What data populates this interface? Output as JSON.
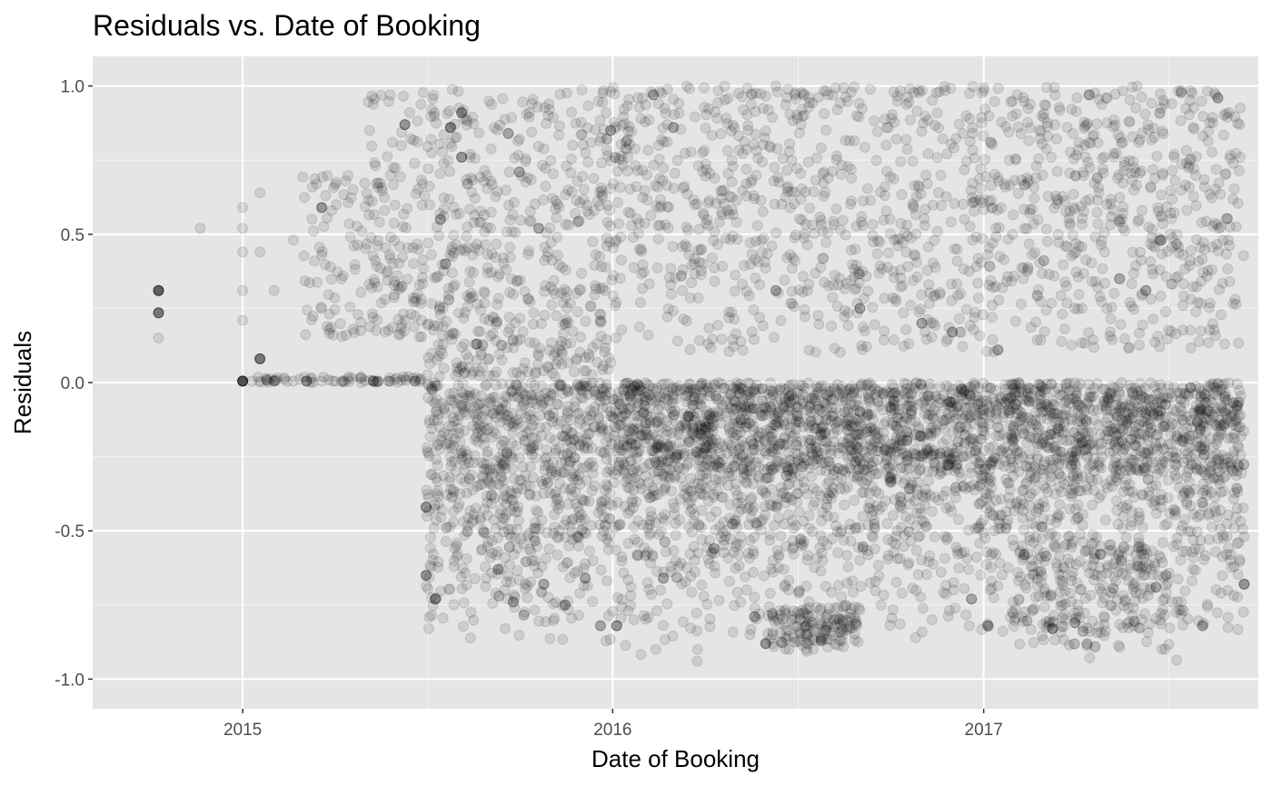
{
  "chart_data": {
    "type": "scatter",
    "title": "Residuals vs. Date of Booking",
    "xlabel": "Date of Booking",
    "ylabel": "Residuals",
    "xlim": [
      "2014-08-06",
      "2017-09-29"
    ],
    "ylim": [
      -1.1,
      1.1
    ],
    "x_ticks": [
      {
        "value": "2015-01-01",
        "label": "2015"
      },
      {
        "value": "2016-01-01",
        "label": "2016"
      },
      {
        "value": "2017-01-01",
        "label": "2017"
      }
    ],
    "y_ticks": [
      {
        "value": 1.0,
        "label": "1.0"
      },
      {
        "value": 0.5,
        "label": "0.5"
      },
      {
        "value": 0.0,
        "label": "0.0"
      },
      {
        "value": -0.5,
        "label": "-0.5"
      },
      {
        "value": -1.0,
        "label": "-1.0"
      }
    ],
    "grid": true,
    "legend": "none",
    "colors": {
      "panel_background": "#e5e5e5",
      "gridline": "#ffffff",
      "point": "#000000",
      "tick_text": "#4d4d4d",
      "text": "#000000"
    },
    "point_alpha": 0.1,
    "points": [
      [
        "2014-10-10",
        0.31
      ],
      [
        "2014-10-10",
        0.31
      ],
      [
        "2014-10-10",
        0.31
      ],
      [
        "2014-10-10",
        0.31
      ],
      [
        "2014-10-10",
        0.31
      ],
      [
        "2014-10-10",
        0.31
      ],
      [
        "2014-10-10",
        0.31
      ],
      [
        "2014-10-10",
        0.31
      ],
      [
        "2014-10-10",
        0.235
      ],
      [
        "2014-10-10",
        0.235
      ],
      [
        "2014-10-10",
        0.235
      ],
      [
        "2014-10-10",
        0.235
      ],
      [
        "2014-10-10",
        0.235
      ],
      [
        "2014-10-10",
        0.235
      ],
      [
        "2014-10-10",
        0.15
      ],
      [
        "2014-11-20",
        0.52
      ],
      [
        "2015-01-01",
        0.005
      ],
      [
        "2015-01-01",
        0.005
      ],
      [
        "2015-01-01",
        0.005
      ],
      [
        "2015-01-01",
        0.005
      ],
      [
        "2015-01-01",
        0.005
      ],
      [
        "2015-01-01",
        0.005
      ],
      [
        "2015-01-01",
        0.005
      ],
      [
        "2015-01-01",
        0.005
      ],
      [
        "2015-01-01",
        0.005
      ],
      [
        "2015-01-01",
        0.005
      ],
      [
        "2015-01-01",
        0.52
      ],
      [
        "2015-01-01",
        0.44
      ],
      [
        "2015-01-01",
        0.59
      ],
      [
        "2015-01-01",
        0.31
      ],
      [
        "2015-01-01",
        0.21
      ],
      [
        "2015-01-18",
        0.08
      ],
      [
        "2015-01-18",
        0.08
      ],
      [
        "2015-01-18",
        0.08
      ],
      [
        "2015-01-18",
        0.08
      ],
      [
        "2015-01-18",
        0.08
      ],
      [
        "2015-01-18",
        0.08
      ],
      [
        "2015-01-18",
        0.44
      ],
      [
        "2015-01-18",
        0.64
      ],
      [
        "2015-02-01",
        0.31
      ],
      [
        "2015-02-01",
        0.005
      ],
      [
        "2015-02-01",
        0.005
      ],
      [
        "2015-02-01",
        0.005
      ],
      [
        "2015-02-20",
        0.48
      ],
      [
        "2015-02-20",
        0.005
      ],
      [
        "2015-03-05",
        0.005
      ],
      [
        "2015-03-05",
        0.005
      ],
      [
        "2015-03-05",
        0.005
      ],
      [
        "2015-03-05",
        0.005
      ],
      [
        "2015-03-20",
        0.59
      ],
      [
        "2015-03-20",
        0.59
      ],
      [
        "2015-03-20",
        0.59
      ],
      [
        "2015-03-20",
        0.59
      ],
      [
        "2015-03-20",
        0.43
      ],
      [
        "2015-03-20",
        0.005
      ],
      [
        "2015-04-10",
        0.36
      ],
      [
        "2015-04-10",
        0.005
      ],
      [
        "2015-04-20",
        0.65
      ],
      [
        "2015-04-20",
        0.18
      ],
      [
        "2015-05-10",
        0.005
      ],
      [
        "2015-05-10",
        0.005
      ],
      [
        "2015-05-10",
        0.005
      ],
      [
        "2015-05-25",
        0.005
      ],
      [
        "2015-05-25",
        0.005
      ],
      [
        "2015-06-10",
        0.87
      ],
      [
        "2015-06-10",
        0.87
      ],
      [
        "2015-06-10",
        0.87
      ],
      [
        "2015-06-10",
        0.87
      ],
      [
        "2015-06-20",
        0.005
      ],
      [
        "2015-06-20",
        0.005
      ],
      [
        "2015-06-20",
        0.005
      ],
      [
        "2015-07-01",
        -0.42
      ],
      [
        "2015-07-01",
        -0.42
      ],
      [
        "2015-07-01",
        -0.42
      ],
      [
        "2015-07-01",
        -0.42
      ],
      [
        "2015-07-01",
        -0.65
      ],
      [
        "2015-07-01",
        -0.65
      ],
      [
        "2015-07-01",
        -0.65
      ],
      [
        "2015-07-01",
        -0.65
      ],
      [
        "2015-07-10",
        -0.73
      ],
      [
        "2015-07-10",
        -0.73
      ],
      [
        "2015-07-10",
        -0.73
      ],
      [
        "2015-07-10",
        -0.73
      ],
      [
        "2015-07-25",
        0.86
      ],
      [
        "2015-07-25",
        0.86
      ],
      [
        "2015-07-25",
        0.86
      ],
      [
        "2015-07-25",
        0.86
      ],
      [
        "2015-08-05",
        0.91
      ],
      [
        "2015-08-05",
        0.91
      ],
      [
        "2015-08-05",
        0.91
      ],
      [
        "2015-08-05",
        0.91
      ],
      [
        "2015-08-05",
        0.76
      ],
      [
        "2015-08-05",
        0.76
      ],
      [
        "2015-08-05",
        0.76
      ],
      [
        "2015-08-05",
        0.76
      ],
      [
        "2015-07-15",
        0.55
      ],
      [
        "2015-07-15",
        0.55
      ],
      [
        "2015-07-15",
        0.55
      ],
      [
        "2015-07-20",
        0.4
      ],
      [
        "2015-07-20",
        0.4
      ],
      [
        "2015-07-20",
        0.4
      ],
      [
        "2015-08-20",
        0.13
      ],
      [
        "2015-08-20",
        0.13
      ],
      [
        "2015-08-20",
        0.13
      ],
      [
        "2015-09-20",
        0.84
      ],
      [
        "2015-09-20",
        0.84
      ],
      [
        "2015-09-20",
        0.84
      ],
      [
        "2015-10-01",
        0.71
      ],
      [
        "2015-10-01",
        0.71
      ],
      [
        "2015-10-01",
        0.71
      ],
      [
        "2015-10-20",
        0.52
      ],
      [
        "2015-10-20",
        0.52
      ],
      [
        "2015-10-20",
        0.52
      ],
      [
        "2015-09-10",
        -0.63
      ],
      [
        "2015-09-10",
        -0.63
      ],
      [
        "2015-09-10",
        -0.63
      ],
      [
        "2015-09-25",
        -0.74
      ],
      [
        "2015-09-25",
        -0.74
      ],
      [
        "2015-09-25",
        -0.74
      ],
      [
        "2015-10-25",
        -0.68
      ],
      [
        "2015-10-25",
        -0.68
      ],
      [
        "2015-10-25",
        -0.68
      ],
      [
        "2015-11-15",
        -0.75
      ],
      [
        "2015-11-15",
        -0.75
      ],
      [
        "2015-11-15",
        -0.75
      ],
      [
        "2015-12-05",
        -0.66
      ],
      [
        "2015-12-05",
        -0.66
      ],
      [
        "2015-12-05",
        -0.66
      ],
      [
        "2015-12-20",
        -0.82
      ],
      [
        "2015-12-20",
        -0.82
      ],
      [
        "2015-12-20",
        -0.82
      ],
      [
        "2015-12-30",
        0.85
      ],
      [
        "2015-12-30",
        0.85
      ],
      [
        "2015-12-30",
        0.85
      ],
      [
        "2016-01-05",
        -0.82
      ],
      [
        "2016-01-05",
        -0.82
      ],
      [
        "2016-01-05",
        -0.82
      ],
      [
        "2016-01-05",
        -0.82
      ],
      [
        "2016-02-10",
        0.97
      ],
      [
        "2016-02-10",
        0.97
      ],
      [
        "2016-02-10",
        0.97
      ],
      [
        "2016-03-01",
        0.86
      ],
      [
        "2016-03-01",
        0.86
      ],
      [
        "2016-03-01",
        0.86
      ],
      [
        "2016-02-20",
        -0.66
      ],
      [
        "2016-02-20",
        -0.66
      ],
      [
        "2016-02-20",
        -0.66
      ],
      [
        "2016-05-31",
        -0.88
      ],
      [
        "2016-05-31",
        -0.88
      ],
      [
        "2016-05-31",
        -0.88
      ],
      [
        "2016-05-31",
        -0.88
      ],
      [
        "2016-05-20",
        -0.79
      ],
      [
        "2016-05-20",
        -0.79
      ],
      [
        "2016-05-20",
        -0.79
      ],
      [
        "2016-04-10",
        -0.56
      ],
      [
        "2016-04-10",
        -0.56
      ],
      [
        "2016-04-10",
        -0.56
      ],
      [
        "2016-12-20",
        -0.73
      ],
      [
        "2016-12-20",
        -0.73
      ],
      [
        "2016-12-20",
        -0.73
      ],
      [
        "2017-01-05",
        -0.82
      ],
      [
        "2017-01-05",
        -0.82
      ],
      [
        "2017-01-05",
        -0.82
      ],
      [
        "2017-02-10",
        -0.58
      ],
      [
        "2017-02-10",
        -0.58
      ],
      [
        "2017-02-10",
        -0.58
      ],
      [
        "2017-03-10",
        -0.83
      ],
      [
        "2017-03-10",
        -0.83
      ],
      [
        "2017-03-10",
        -0.83
      ],
      [
        "2017-03-10",
        -0.83
      ],
      [
        "2017-04-01",
        -0.81
      ],
      [
        "2017-04-01",
        -0.81
      ],
      [
        "2017-04-01",
        -0.81
      ],
      [
        "2017-06-20",
        -0.69
      ],
      [
        "2017-06-20",
        -0.69
      ],
      [
        "2017-06-20",
        -0.69
      ],
      [
        "2017-08-05",
        -0.82
      ],
      [
        "2017-08-05",
        -0.82
      ],
      [
        "2017-08-05",
        -0.82
      ],
      [
        "2017-09-15",
        -0.68
      ],
      [
        "2017-09-15",
        -0.68
      ],
      [
        "2017-09-15",
        -0.68
      ],
      [
        "2017-09-15",
        -0.68
      ],
      [
        "2017-08-20",
        0.96
      ],
      [
        "2017-08-20",
        0.96
      ],
      [
        "2017-08-20",
        0.96
      ],
      [
        "2017-06-25",
        0.48
      ],
      [
        "2017-06-25",
        0.48
      ],
      [
        "2017-06-25",
        0.48
      ],
      [
        "2017-06-10",
        0.31
      ],
      [
        "2017-06-10",
        0.31
      ],
      [
        "2017-06-10",
        0.31
      ],
      [
        "2017-05-15",
        0.35
      ],
      [
        "2017-05-15",
        0.35
      ],
      [
        "2017-05-15",
        0.35
      ],
      [
        "2017-04-15",
        0.97
      ],
      [
        "2017-04-15",
        0.97
      ],
      [
        "2017-04-15",
        0.97
      ],
      [
        "2016-06-10",
        0.31
      ],
      [
        "2016-06-10",
        0.31
      ],
      [
        "2016-06-10",
        0.31
      ],
      [
        "2016-09-01",
        0.25
      ],
      [
        "2016-09-01",
        0.25
      ],
      [
        "2016-09-01",
        0.25
      ],
      [
        "2016-11-01",
        0.2
      ],
      [
        "2016-11-01",
        0.2
      ],
      [
        "2016-11-01",
        0.2
      ],
      [
        "2016-12-01",
        0.17
      ],
      [
        "2016-12-01",
        0.17
      ],
      [
        "2016-12-01",
        0.17
      ],
      [
        "2017-01-15",
        0.11
      ],
      [
        "2017-01-15",
        0.11
      ],
      [
        "2017-01-15",
        0.11
      ],
      [
        "2015-12-01",
        -0.05
      ],
      [
        "2016-02-01",
        -0.1
      ],
      [
        "2016-05-01",
        -0.12
      ],
      [
        "2016-09-01",
        -0.1
      ],
      [
        "2017-01-01",
        -0.15
      ],
      [
        "2017-06-01",
        -0.1
      ]
    ]
  }
}
